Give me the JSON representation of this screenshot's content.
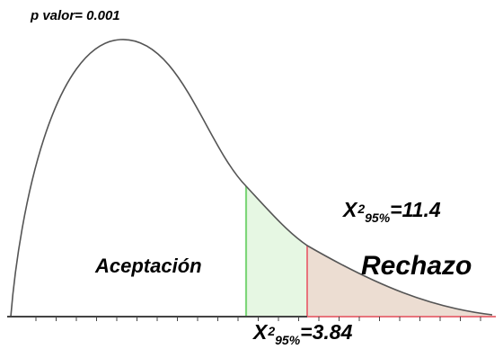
{
  "p_value_label": "p valor= 0.001",
  "region_labels": {
    "acceptance": "Aceptación",
    "rejection": "Rechazo"
  },
  "critical_value_95": {
    "symbol": "X",
    "superscript": "2",
    "subscript": "95%",
    "value_text": "=3.84"
  },
  "test_statistic": {
    "symbol": "X",
    "superscript": "2",
    "subscript": "95%",
    "value_text": "=11.4"
  },
  "colors": {
    "curve": "#555555",
    "axis": "#444444",
    "critical_line": "#7dd67a",
    "critical_fill": "#e6f7e3",
    "statistic_line": "#e8747c",
    "rejection_fill": "#ecddd2",
    "rejection_axis": "#e8747c"
  }
}
